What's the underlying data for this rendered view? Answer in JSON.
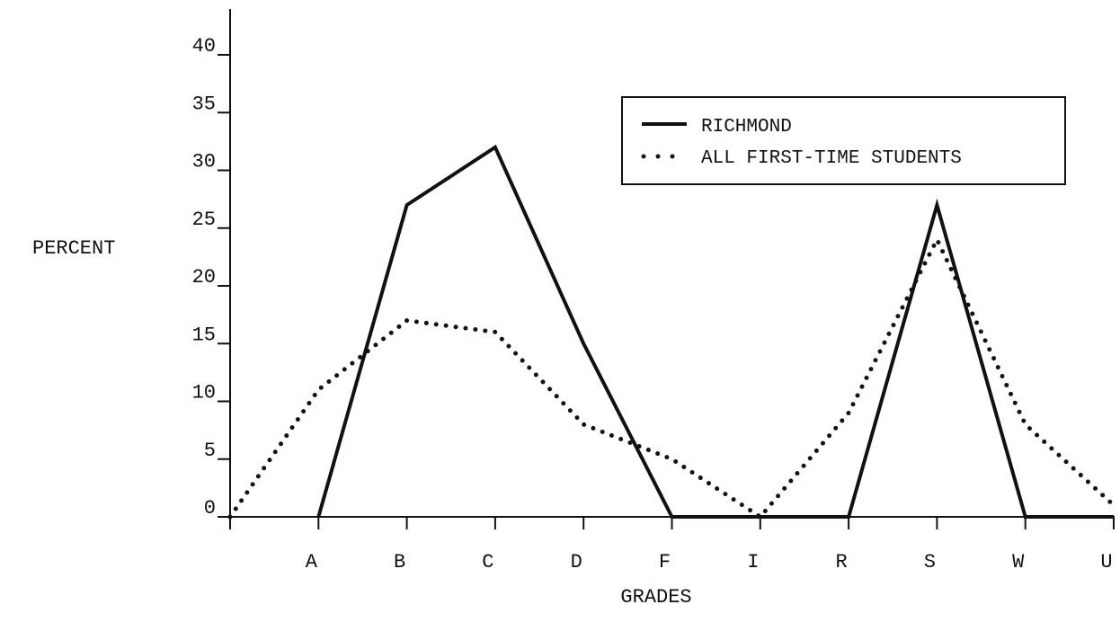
{
  "chart_data": {
    "type": "line",
    "title": "",
    "xlabel": "GRADES",
    "ylabel": "PERCENT",
    "categories": [
      "",
      "A",
      "B",
      "C",
      "D",
      "F",
      "I",
      "R",
      "S",
      "W",
      "U"
    ],
    "yticks": [
      "0",
      "5",
      "10",
      "15",
      "20",
      "25",
      "30",
      "35",
      "40"
    ],
    "ylim": [
      0,
      44
    ],
    "grid": false,
    "legend_position": "top-right",
    "series": [
      {
        "name": "RICHMOND",
        "style": "solid",
        "color": "#111111",
        "values": [
          null,
          0,
          27,
          32,
          15,
          0,
          0,
          0,
          27,
          0,
          0
        ]
      },
      {
        "name": "ALL FIRST-TIME STUDENTS",
        "style": "dotted",
        "color": "#111111",
        "values": [
          0,
          11,
          17,
          16,
          8,
          5,
          0,
          9,
          24,
          8,
          1
        ]
      }
    ]
  }
}
